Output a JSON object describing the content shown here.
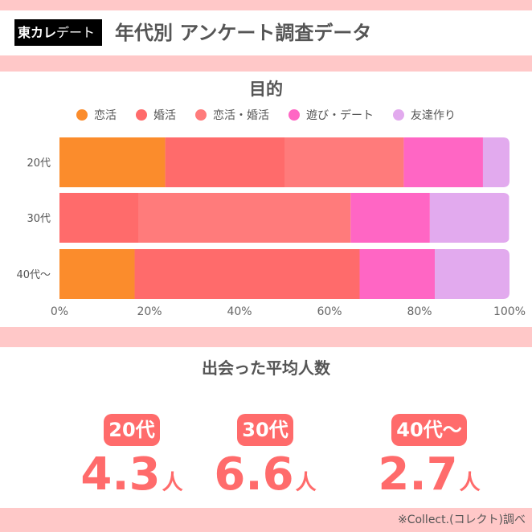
{
  "header": {
    "logo_bold": "東カレ",
    "logo_thin": "デート",
    "title": "年代別 アンケート調査データ"
  },
  "chart_data": {
    "type": "bar",
    "orientation": "horizontal",
    "stacked": true,
    "title": "目的",
    "categories": [
      "20代",
      "30代",
      "40代〜"
    ],
    "series": [
      {
        "name": "恋活",
        "color": "#fb8c2c",
        "values": [
          23.5,
          0,
          16.7
        ]
      },
      {
        "name": "婚活",
        "color": "#ff6b6b",
        "values": [
          26.5,
          17.6,
          50.0
        ]
      },
      {
        "name": "恋活・婚活",
        "color": "#ff7b7b",
        "values": [
          26.5,
          47.1,
          0
        ]
      },
      {
        "name": "遊び・デート",
        "color": "#ff66c4",
        "values": [
          17.6,
          17.6,
          16.7
        ]
      },
      {
        "name": "友達作り",
        "color": "#e2aaee",
        "values": [
          5.9,
          17.6,
          16.6
        ]
      }
    ],
    "xlim": [
      0,
      100
    ],
    "xticks": [
      "0%",
      "20%",
      "40%",
      "60%",
      "80%",
      "100%"
    ],
    "legend": "top",
    "grid": false
  },
  "average": {
    "title": "出会った平均人数",
    "items": [
      {
        "label": "20代",
        "value": "4.3",
        "unit": "人"
      },
      {
        "label": "30代",
        "value": "6.6",
        "unit": "人"
      },
      {
        "label": "40代〜",
        "value": "2.7",
        "unit": "人"
      }
    ]
  },
  "footer": {
    "source": "※Collect.(コレクト)調べ"
  }
}
